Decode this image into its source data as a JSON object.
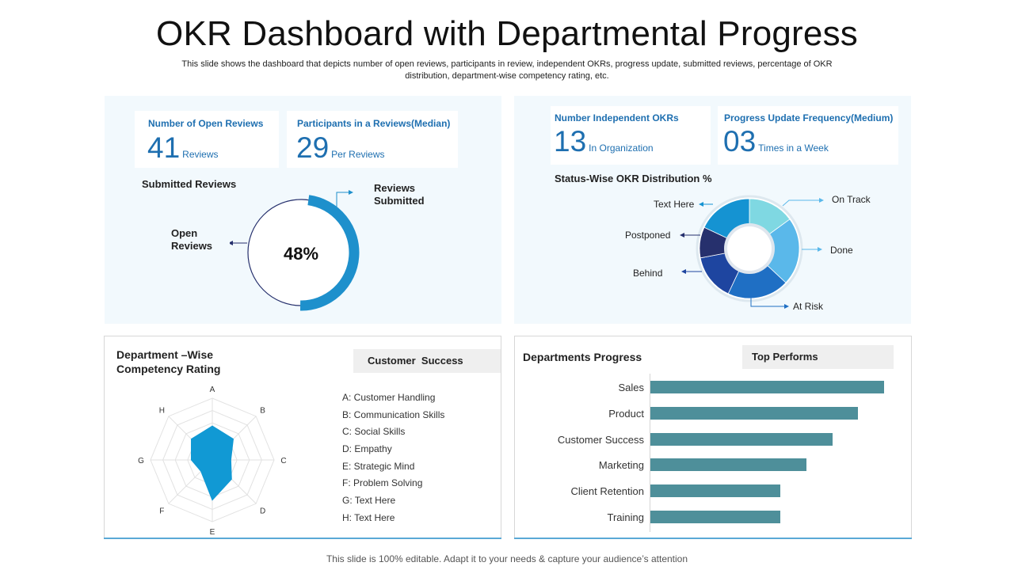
{
  "header": {
    "title": "OKR Dashboard with Departmental Progress",
    "subtitle": "This slide shows the dashboard that depicts number of open reviews, participants in review, independent OKRs, progress update, submitted reviews, percentage of OKR distribution, department-wise competency rating, etc."
  },
  "reviews_panel": {
    "open_reviews": {
      "label": "Number of Open Reviews",
      "value": "41",
      "unit": "Reviews"
    },
    "participants": {
      "label": "Participants in a Reviews(Median)",
      "value": "29",
      "unit": "Per Reviews"
    },
    "submitted_title": "Submitted Reviews",
    "donut_center": "48%",
    "label_submitted_line1": "Reviews",
    "label_submitted_line2": "Submitted",
    "label_open_line1": "Open",
    "label_open_line2": "Reviews"
  },
  "okr_panel": {
    "independent": {
      "label": "Number Independent OKRs",
      "value": "13",
      "unit": "In Organization"
    },
    "frequency": {
      "label": "Progress Update Frequency(Medium)",
      "value": "03",
      "unit": "Times in a Week"
    },
    "distribution_title": "Status-Wise OKR Distribution %"
  },
  "competency_panel": {
    "title_line1": "Department –Wise",
    "title_line2": "Competency Rating",
    "tab_label": "Customer  Success",
    "legend": [
      "A: Customer Handling",
      "B: Communication Skills",
      "C: Social Skills",
      "D: Empathy",
      "E: Strategic Mind",
      "F: Problem Solving",
      "G: Text Here",
      "H: Text Here"
    ]
  },
  "progress_panel": {
    "title": "Departments Progress",
    "tab_label": "Top Performs"
  },
  "footer": {
    "text": "This slide is 100% editable. Adapt it to your needs & capture your audience’s attention"
  },
  "colors": {
    "accent_blue": "#1e6fb0",
    "ring_blue": "#1e90cc",
    "bar_teal": "#4e8f9a",
    "radar_fill": "#1199d4"
  },
  "chart_data": [
    {
      "type": "pie",
      "title": "Submitted Reviews",
      "categories": [
        "Reviews Submitted",
        "Open Reviews"
      ],
      "values": [
        48,
        52
      ],
      "center_label": "48%"
    },
    {
      "type": "pie",
      "title": "Status-Wise OKR Distribution %",
      "categories": [
        "On Track",
        "Done",
        "At Risk",
        "Behind",
        "Postponed",
        "Text Here"
      ],
      "values": [
        15,
        22,
        20,
        15,
        10,
        18
      ],
      "colors": [
        "#7fd8e2",
        "#5ab8ea",
        "#1f6fc4",
        "#1e45a0",
        "#26306d",
        "#1593d2"
      ]
    },
    {
      "type": "radar",
      "title": "Department –Wise Competency Rating",
      "series_name": "Customer  Success",
      "categories": [
        "A",
        "B",
        "C",
        "D",
        "E",
        "F",
        "G",
        "H"
      ],
      "values": [
        5.5,
        4.8,
        3.0,
        4.4,
        6.5,
        2.6,
        3.4,
        4.8
      ],
      "ylim": [
        0,
        10
      ]
    },
    {
      "type": "bar",
      "orientation": "horizontal",
      "title": "Departments Progress",
      "categories": [
        "Sales",
        "Product",
        "Customer Success",
        "Marketing",
        "Client Retention",
        "Training"
      ],
      "values": [
        90,
        80,
        70,
        60,
        50,
        50
      ],
      "xlim": [
        0,
        100
      ]
    }
  ]
}
